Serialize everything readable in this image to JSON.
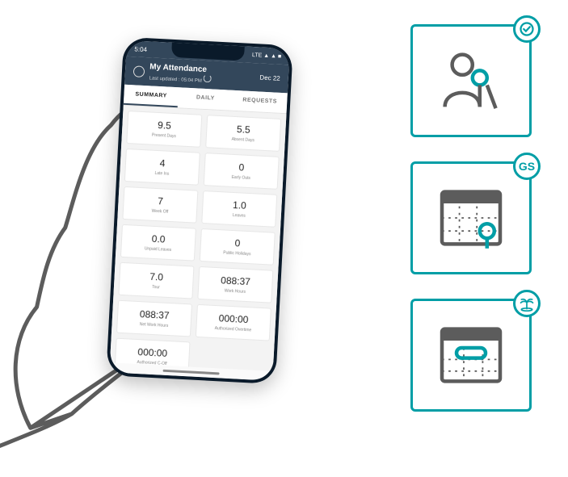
{
  "colors": {
    "teal": "#009ea6",
    "gray": "#5c5c5c",
    "phone_header": "#33475b",
    "card_bg": "#ffffff",
    "screen_bg": "#f3f3f3"
  },
  "phone": {
    "status_time": "5:04",
    "status_net": "LTE ▲ ▲ ■",
    "header": {
      "title": "My Attendance",
      "subtitle": "Last updated : 05:04 PM",
      "date": "Dec 22"
    },
    "tabs": [
      {
        "label": "SUMMARY",
        "active": true
      },
      {
        "label": "DAILY",
        "active": false
      },
      {
        "label": "REQUESTS",
        "active": false
      }
    ],
    "stats": [
      {
        "value": "9.5",
        "label": "Present Days"
      },
      {
        "value": "5.5",
        "label": "Absent Days"
      },
      {
        "value": "4",
        "label": "Late Ins"
      },
      {
        "value": "0",
        "label": "Early Outs"
      },
      {
        "value": "7",
        "label": "Week Off"
      },
      {
        "value": "1.0",
        "label": "Leaves"
      },
      {
        "value": "0.0",
        "label": "Unpaid Leaves"
      },
      {
        "value": "0",
        "label": "Public Holidays"
      },
      {
        "value": "7.0",
        "label": "Tour"
      },
      {
        "value": "088:37",
        "label": "Work Hours"
      },
      {
        "value": "088:37",
        "label": "Net Work Hours"
      },
      {
        "value": "000:00",
        "label": "Authorized Overtime"
      },
      {
        "value": "000:00",
        "label": "Authorized C-Off"
      }
    ]
  },
  "panels": [
    {
      "name": "attendance-panel",
      "border": "#009ea6",
      "badge": {
        "type": "icon",
        "icon": "check",
        "color": "#009ea6"
      },
      "content": "person-mark"
    },
    {
      "name": "shift-panel",
      "border": "#009ea6",
      "badge": {
        "type": "text",
        "text": "GS",
        "color": "#009ea6"
      },
      "content": "calendar-mark"
    },
    {
      "name": "leave-panel",
      "border": "#009ea6",
      "badge": {
        "type": "icon",
        "icon": "palm",
        "color": "#009ea6"
      },
      "content": "calendar-pill"
    }
  ]
}
